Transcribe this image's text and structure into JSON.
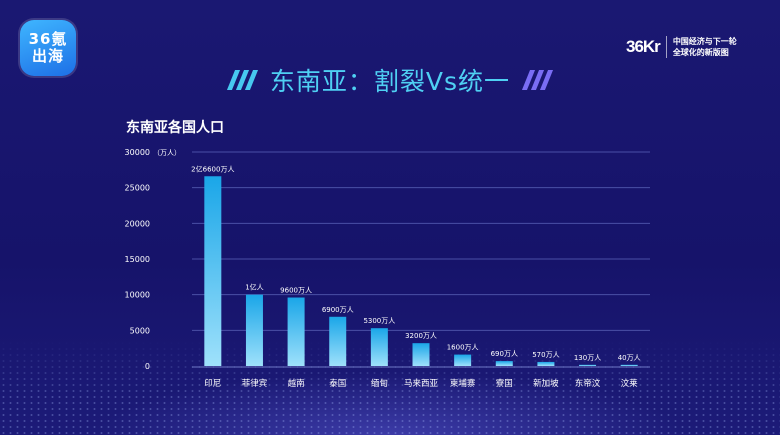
{
  "brand_left": {
    "line1": "36氪",
    "line2": "出海"
  },
  "brand_right": {
    "mark": "36Kr",
    "tag_line1": "中国经济与下一轮",
    "tag_line2": "全球化的新版图"
  },
  "header": {
    "title": "东南亚：割裂Vs统一"
  },
  "chart_title": "东南亚各国人口",
  "colors": {
    "bar_top": "#1aa6e8",
    "bar_bottom": "#9fe1fb",
    "title": "#4fd0f3",
    "background": "#17146a"
  },
  "chart_data": {
    "type": "bar",
    "title": "东南亚各国人口",
    "ylabel": "（万人）",
    "xlabel": "",
    "ylim": [
      0,
      30000
    ],
    "yticks": [
      0,
      5000,
      10000,
      15000,
      20000,
      25000,
      30000
    ],
    "grid": true,
    "categories": [
      "印尼",
      "菲律宾",
      "越南",
      "泰国",
      "缅甸",
      "马来西亚",
      "柬埔寨",
      "寮国",
      "新加坡",
      "东帝汶",
      "汶莱"
    ],
    "values": [
      26600,
      10000,
      9600,
      6900,
      5300,
      3200,
      1600,
      690,
      570,
      130,
      40
    ],
    "data_labels": [
      "2亿6600万人",
      "1亿人",
      "9600万人",
      "6900万人",
      "5300万人",
      "3200万人",
      "1600万人",
      "690万人",
      "570万人",
      "130万人",
      "40万人"
    ]
  }
}
